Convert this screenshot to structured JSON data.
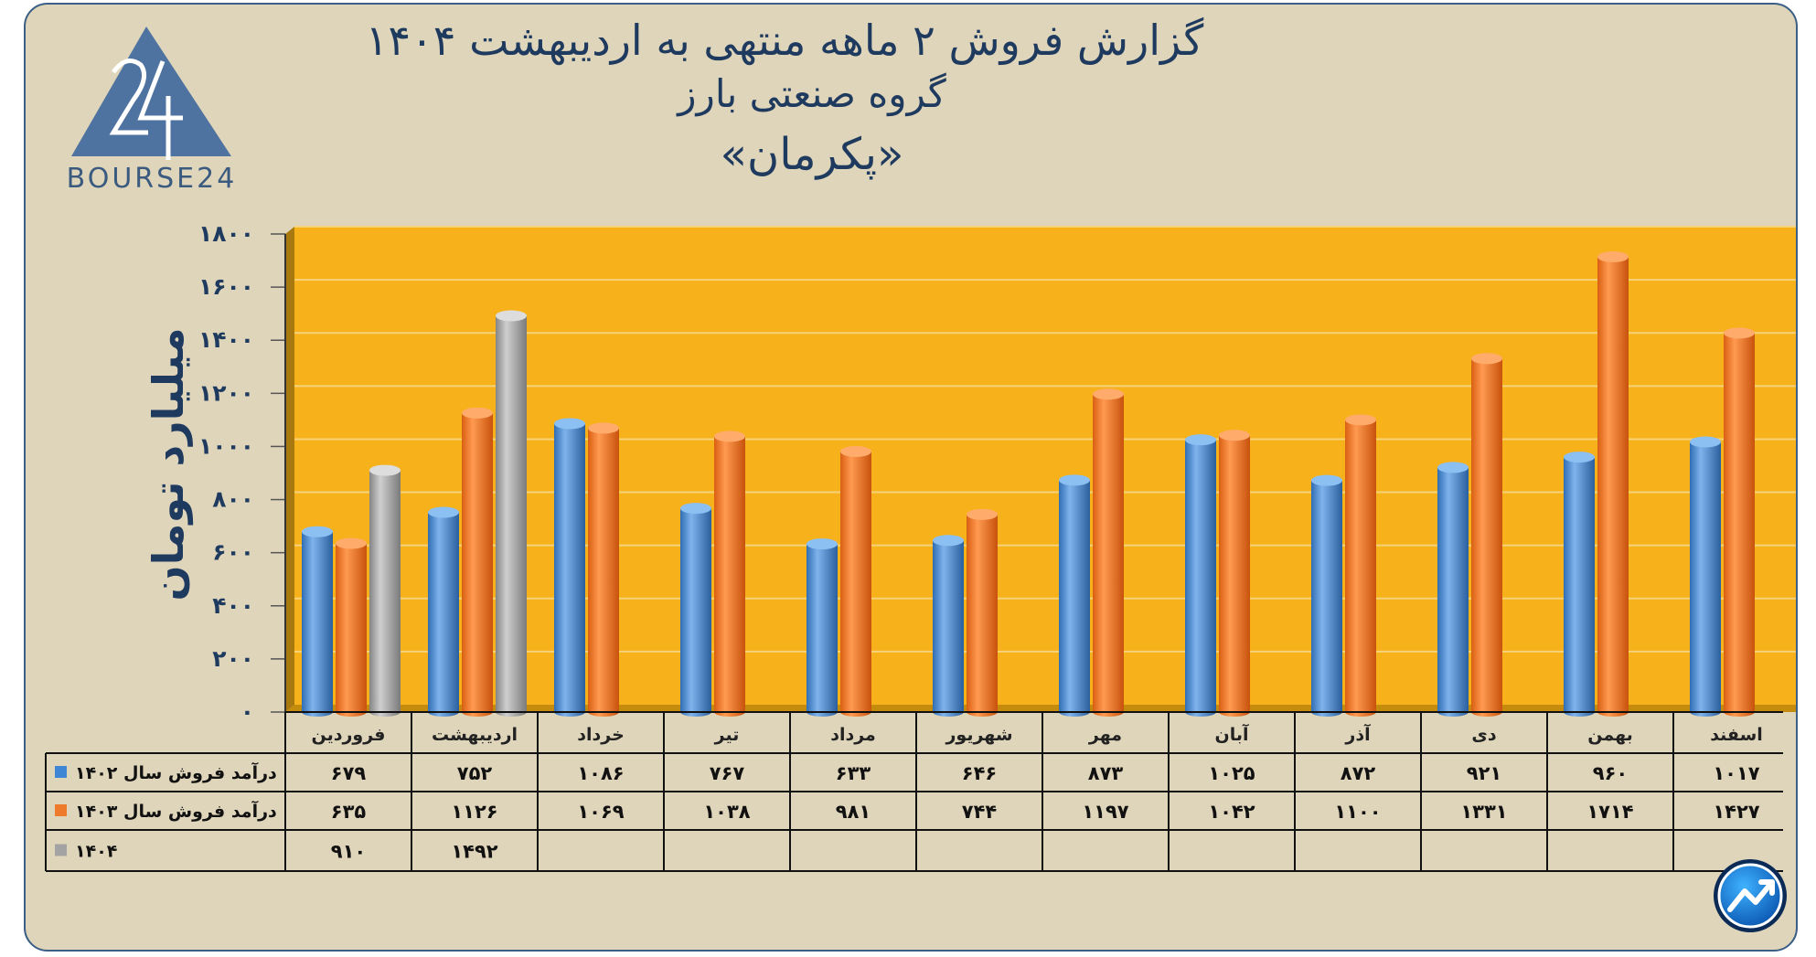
{
  "header": {
    "title_line1": "گزارش  فروش ۲ ماهه منتهی به اردیبهشت ۱۴۰۴",
    "title_line2": "گروه صنعتی بارز",
    "title_line3": "«پکرمان»"
  },
  "logo": {
    "text": "BOURSE24",
    "icon": "triangle-24-logo"
  },
  "badge": {
    "icon": "trend-arrow-icon"
  },
  "chart_data": {
    "type": "bar",
    "title": "گزارش  فروش ۲ ماهه منتهی به اردیبهشت ۱۴۰۴",
    "ylabel": "میلیارد تومان",
    "xlabel": "",
    "ylim": [
      0,
      1800
    ],
    "yticks": [
      0,
      200,
      400,
      600,
      800,
      1000,
      1200,
      1400,
      1600,
      1800
    ],
    "ytick_labels": [
      "۰",
      "۲۰۰",
      "۴۰۰",
      "۶۰۰",
      "۸۰۰",
      "۱۰۰۰",
      "۱۲۰۰",
      "۱۴۰۰",
      "۱۶۰۰",
      "۱۸۰۰"
    ],
    "grid": true,
    "legend": "data-table",
    "categories": [
      "فروردین",
      "اردیبهشت",
      "خرداد",
      "تیر",
      "مرداد",
      "شهریور",
      "مهر",
      "آبان",
      "آذر",
      "دی",
      "بهمن",
      "اسفند"
    ],
    "series": [
      {
        "name": "درآمد فروش سال ۱۴۰۲",
        "color": "#4f8fd6",
        "values": [
          679,
          752,
          1086,
          767,
          633,
          646,
          873,
          1025,
          872,
          921,
          960,
          1017
        ],
        "labels": [
          "۶۷۹",
          "۷۵۲",
          "۱۰۸۶",
          "۷۶۷",
          "۶۳۳",
          "۶۴۶",
          "۸۷۳",
          "۱۰۲۵",
          "۸۷۲",
          "۹۲۱",
          "۹۶۰",
          "۱۰۱۷"
        ]
      },
      {
        "name": "درآمد فروش سال ۱۴۰۳",
        "color": "#ef7a2a",
        "values": [
          635,
          1126,
          1069,
          1038,
          981,
          744,
          1197,
          1042,
          1100,
          1331,
          1714,
          1427
        ],
        "labels": [
          "۶۳۵",
          "۱۱۲۶",
          "۱۰۶۹",
          "۱۰۳۸",
          "۹۸۱",
          "۷۴۴",
          "۱۱۹۷",
          "۱۰۴۲",
          "۱۱۰۰",
          "۱۳۳۱",
          "۱۷۱۴",
          "۱۴۲۷"
        ]
      },
      {
        "name": "۱۴۰۴",
        "color": "#a6a6a6",
        "values": [
          910,
          1492,
          null,
          null,
          null,
          null,
          null,
          null,
          null,
          null,
          null,
          null
        ],
        "labels": [
          "۹۱۰",
          "۱۴۹۲",
          "",
          "",
          "",
          "",
          "",
          "",
          "",
          "",
          "",
          ""
        ]
      }
    ]
  },
  "colors": {
    "plot_bg": "#f7b11a",
    "frame_bg": "#dfd5ba",
    "navy": "#1f3a5f"
  }
}
